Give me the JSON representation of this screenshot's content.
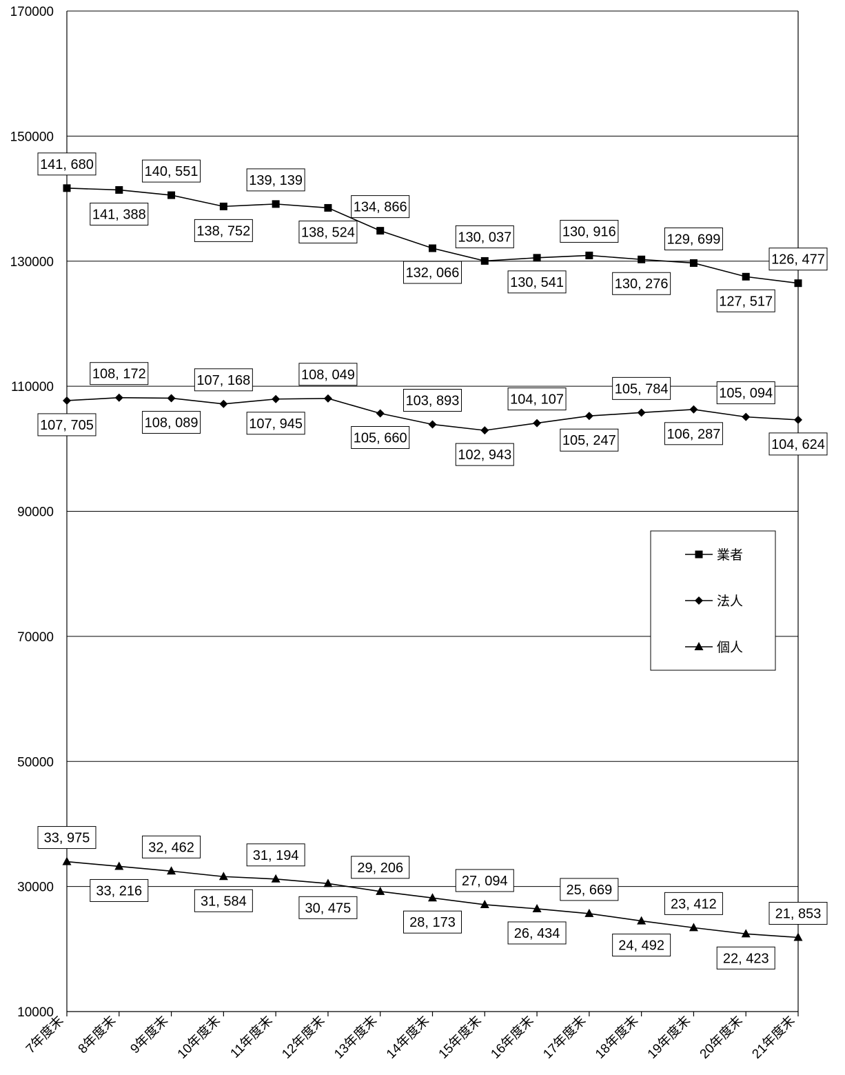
{
  "chart_data": {
    "type": "line",
    "title": "",
    "xlabel": "",
    "ylabel": "",
    "ylim": [
      10000,
      170000
    ],
    "yticks": [
      10000,
      30000,
      50000,
      70000,
      90000,
      110000,
      130000,
      150000,
      170000
    ],
    "ytick_labels": [
      "10000",
      "30000",
      "50000",
      "70000",
      "90000",
      "110000",
      "130000",
      "150000",
      "170000"
    ],
    "grid": true,
    "legend_position": "right",
    "categories": [
      "7年度末",
      "8年度末",
      "9年度末",
      "10年度末",
      "11年度末",
      "12年度末",
      "13年度末",
      "14年度末",
      "15年度末",
      "16年度末",
      "17年度末",
      "18年度末",
      "19年度末",
      "20年度末",
      "21年度末"
    ],
    "series": [
      {
        "name": "業者",
        "marker": "square",
        "values": [
          141680,
          141388,
          140551,
          138752,
          139139,
          138524,
          134866,
          132066,
          130037,
          130541,
          130916,
          130276,
          129699,
          127517,
          126477
        ],
        "labels": [
          "141, 680",
          "141, 388",
          "140, 551",
          "138, 752",
          "139, 139",
          "138, 524",
          "134, 866",
          "132, 066",
          "130, 037",
          "130, 541",
          "130, 916",
          "130, 276",
          "129, 699",
          "127, 517",
          "126, 477"
        ],
        "label_side": [
          "above",
          "below",
          "above",
          "below",
          "above",
          "below",
          "above",
          "below",
          "above",
          "below",
          "above",
          "below",
          "above",
          "below",
          "above"
        ]
      },
      {
        "name": "法人",
        "marker": "diamond",
        "values": [
          107705,
          108172,
          108089,
          107168,
          107945,
          108049,
          105660,
          103893,
          102943,
          104107,
          105247,
          105784,
          106287,
          105094,
          104624
        ],
        "labels": [
          "107, 705",
          "108, 172",
          "108, 089",
          "107, 168",
          "107, 945",
          "108, 049",
          "105, 660",
          "103, 893",
          "102, 943",
          "104, 107",
          "105, 247",
          "105, 784",
          "106, 287",
          "105, 094",
          "104, 624"
        ],
        "label_side": [
          "below",
          "above",
          "below",
          "above",
          "below",
          "above",
          "below",
          "above",
          "below",
          "above",
          "below",
          "above",
          "below",
          "above",
          "below"
        ]
      },
      {
        "name": "個人",
        "marker": "triangle",
        "values": [
          33975,
          33216,
          32462,
          31584,
          31194,
          30475,
          29206,
          28173,
          27094,
          26434,
          25669,
          24492,
          23412,
          22423,
          21853
        ],
        "labels": [
          "33, 975",
          "33, 216",
          "32, 462",
          "31, 584",
          "31, 194",
          "30, 475",
          "29, 206",
          "28, 173",
          "27, 094",
          "26, 434",
          "25, 669",
          "24, 492",
          "23, 412",
          "22, 423",
          "21, 853"
        ],
        "label_side": [
          "above",
          "below",
          "above",
          "below",
          "above",
          "below",
          "above",
          "below",
          "above",
          "below",
          "above",
          "below",
          "above",
          "below",
          "above"
        ]
      }
    ]
  }
}
